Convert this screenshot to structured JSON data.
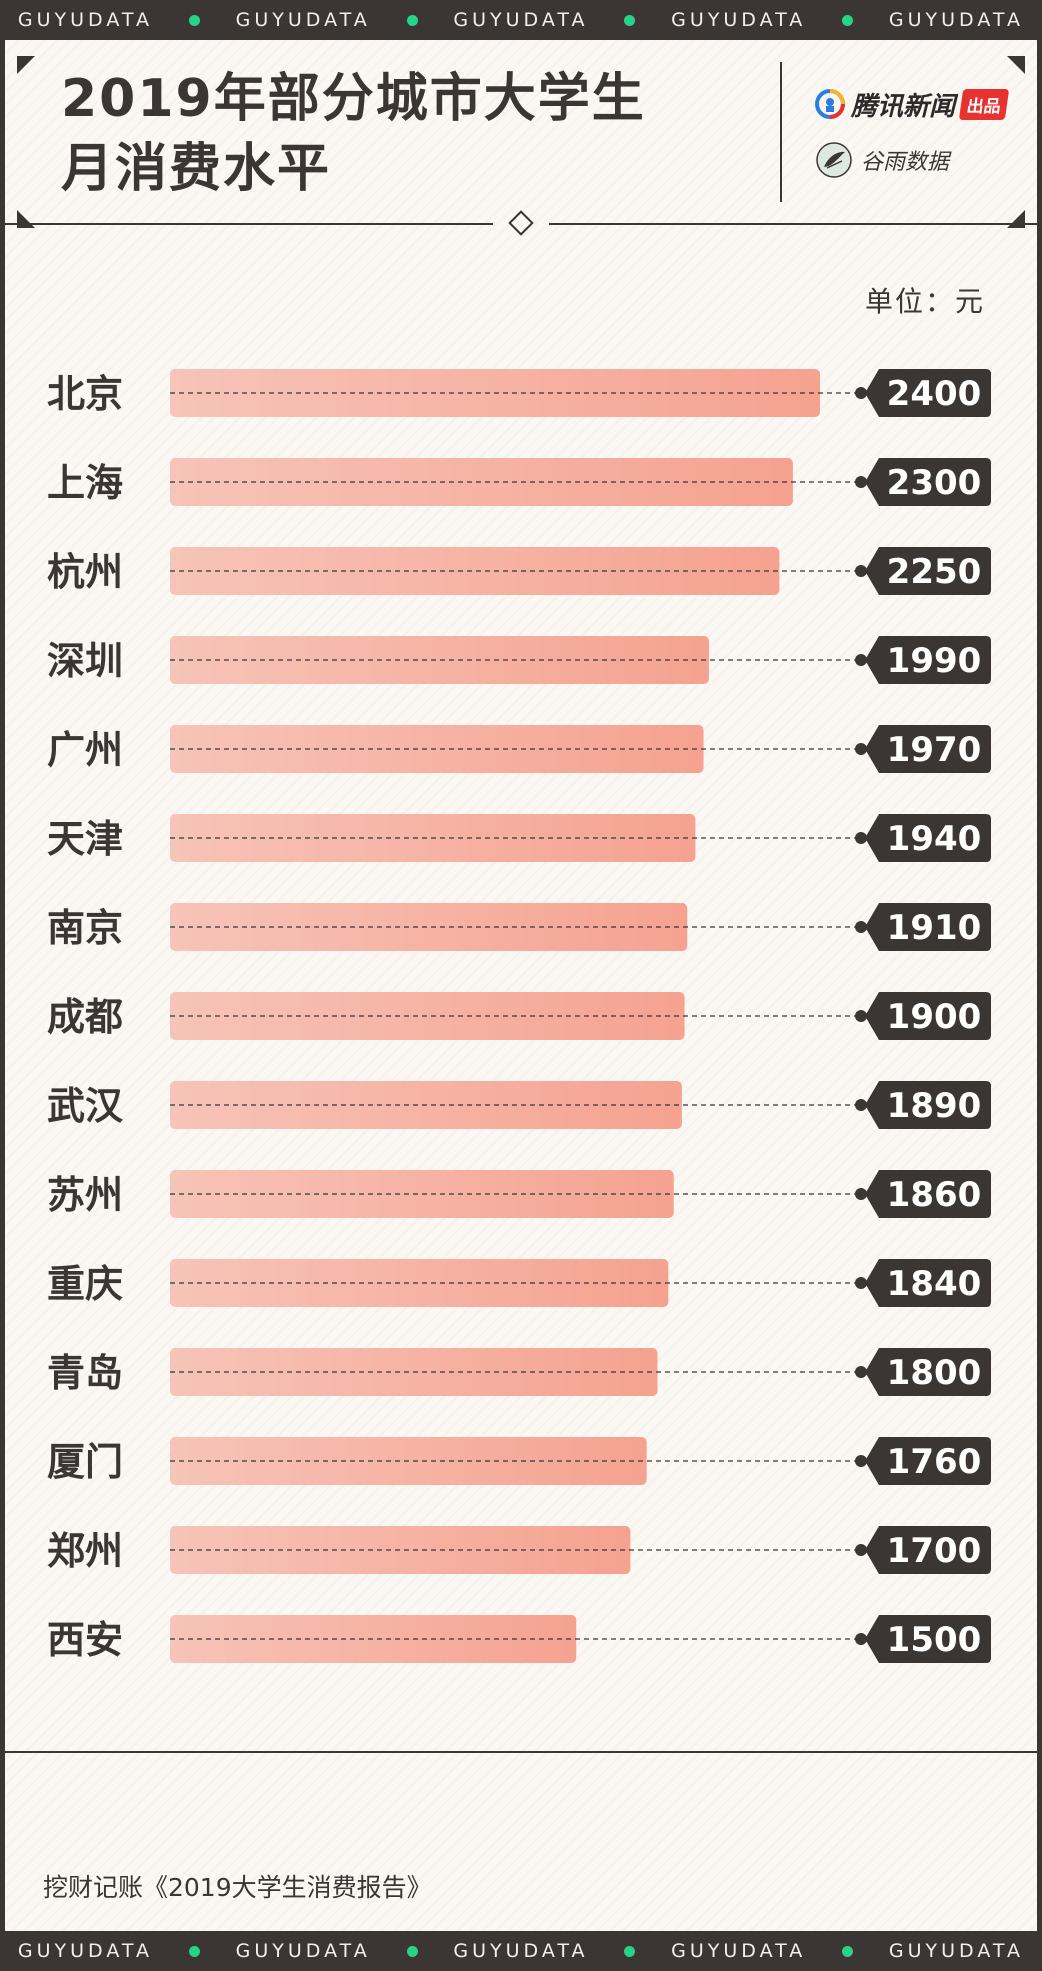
{
  "strip_text": [
    "GUYUDATA",
    "GUYUDATA",
    "GUYUDATA",
    "GUYUDATA",
    "GUYUDATA"
  ],
  "header": {
    "title_line1": "2019年部分城市大学生",
    "title_line2": "月消费水平",
    "brand_tencent": "腾讯新闻",
    "brand_tencent_tag": "出品",
    "brand_guyu": "谷雨数据"
  },
  "unit_label": "单位：元",
  "source": "挖财记账《2019大学生消费报告》",
  "colors": {
    "dark": "#3b3534",
    "bar_start": "#f6c4b8",
    "bar_end": "#f5a290",
    "accent_dot": "#27d38a",
    "brand_red": "#e8322f"
  },
  "chart_data": {
    "type": "bar",
    "orientation": "horizontal",
    "categories": [
      "北京",
      "上海",
      "杭州",
      "深圳",
      "广州",
      "天津",
      "南京",
      "成都",
      "武汉",
      "苏州",
      "重庆",
      "青岛",
      "厦门",
      "郑州",
      "西安"
    ],
    "values": [
      2400,
      2300,
      2250,
      1990,
      1970,
      1940,
      1910,
      1900,
      1890,
      1860,
      1840,
      1800,
      1760,
      1700,
      1500
    ],
    "unit": "元"
  }
}
